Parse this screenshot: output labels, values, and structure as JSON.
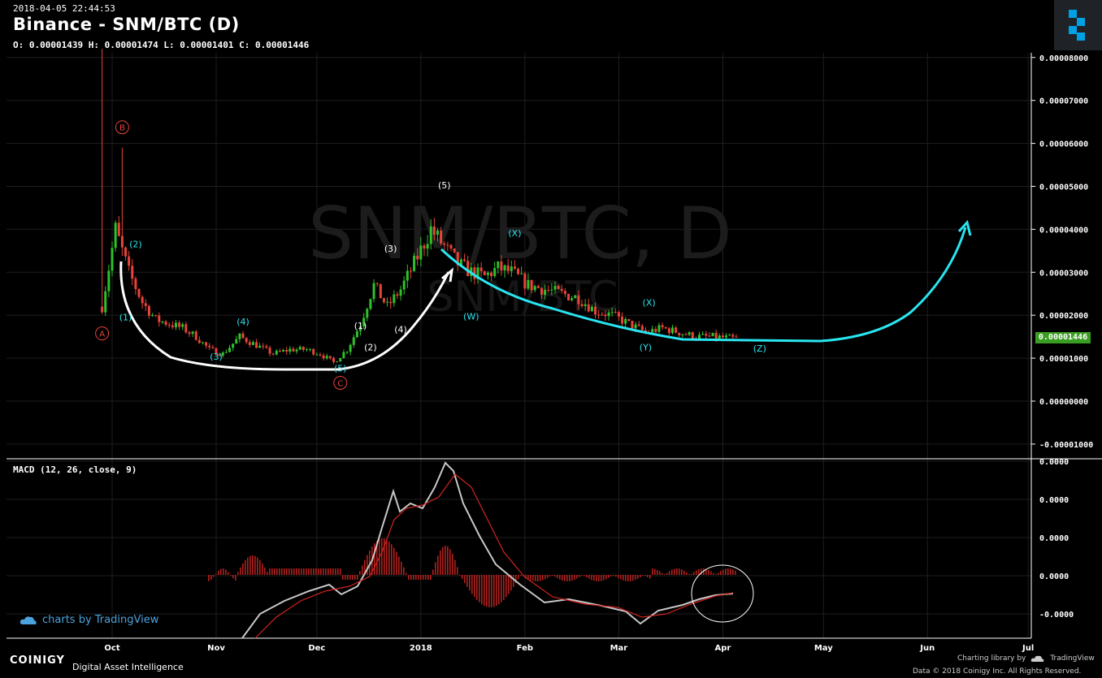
{
  "header": {
    "datetime": "2018-04-05 22:44:53",
    "title": "Binance - SNM/BTC (D)",
    "ohlc": "O: 0.00001439 H: 0.00001474 L: 0.00001401 C: 0.00001446"
  },
  "watermark": {
    "line1": "SNM/BTC, D",
    "line2": "SNM/BTC"
  },
  "last_price": "0.00001446",
  "macd_label": "MACD (12, 26, close, 9)",
  "tradingview_badge": "charts by TradingView",
  "footer": {
    "brand": "COINIGY",
    "tagline": "Digital Asset Intelligence",
    "charting": "Charting library by",
    "charting_brand": "TradingView",
    "rights": "Data © 2018  Coinigy Inc. All Rights Reserved."
  },
  "colors": {
    "up": "#2ec12a",
    "down": "#e8433a",
    "cyan": "#29e5f0",
    "white": "#ffffff",
    "grid": "#1e1e1e",
    "macd_signal": "#d0241f",
    "macd_line": "#c8c8c8",
    "price_tag": "#3a9d23"
  },
  "chart_data": {
    "type": "candlestick",
    "price_axis": {
      "min": -1e-05,
      "max": 8e-05,
      "ticks": [
        "0.00008000",
        "0.00007000",
        "0.00006000",
        "0.00005000",
        "0.00004000",
        "0.00003000",
        "0.00002000",
        "0.00001000",
        "0.00000000",
        "-0.00001000"
      ]
    },
    "time_axis": [
      "Oct",
      "Nov",
      "Dec",
      "2018",
      "Feb",
      "Mar",
      "Apr",
      "May",
      "Jun",
      "Jul"
    ],
    "close_series": [
      [
        "2017-09-28",
        2.2e-05
      ],
      [
        "2017-10-02",
        4e-05
      ],
      [
        "2017-10-06",
        3e-05
      ],
      [
        "2017-10-10",
        2.3e-05
      ],
      [
        "2017-10-14",
        1.9e-05
      ],
      [
        "2017-10-18",
        1.8e-05
      ],
      [
        "2017-10-22",
        1.7e-05
      ],
      [
        "2017-10-26",
        1.5e-05
      ],
      [
        "2017-10-30",
        1.2e-05
      ],
      [
        "2017-11-03",
        1.1e-05
      ],
      [
        "2017-11-08",
        1.5e-05
      ],
      [
        "2017-11-13",
        1.3e-05
      ],
      [
        "2017-11-18",
        1.1e-05
      ],
      [
        "2017-11-23",
        1.2e-05
      ],
      [
        "2017-11-28",
        1.2e-05
      ],
      [
        "2017-12-02",
        1.1e-05
      ],
      [
        "2017-12-06",
        9e-06
      ],
      [
        "2017-12-10",
        1.2e-05
      ],
      [
        "2017-12-14",
        1.8e-05
      ],
      [
        "2017-12-18",
        2.7e-05
      ],
      [
        "2017-12-22",
        2.2e-05
      ],
      [
        "2017-12-26",
        2.6e-05
      ],
      [
        "2017-12-30",
        3.2e-05
      ],
      [
        "2018-01-04",
        4e-05
      ],
      [
        "2018-01-08",
        3.6e-05
      ],
      [
        "2018-01-12",
        3.2e-05
      ],
      [
        "2018-01-16",
        3e-05
      ],
      [
        "2018-01-20",
        2.9e-05
      ],
      [
        "2018-01-24",
        3.1e-05
      ],
      [
        "2018-01-28",
        3e-05
      ],
      [
        "2018-02-02",
        2.7e-05
      ],
      [
        "2018-02-07",
        2.6e-05
      ],
      [
        "2018-02-12",
        2.5e-05
      ],
      [
        "2018-02-17",
        2.4e-05
      ],
      [
        "2018-02-22",
        2.1e-05
      ],
      [
        "2018-02-27",
        2e-05
      ],
      [
        "2018-03-04",
        1.8e-05
      ],
      [
        "2018-03-09",
        1.6e-05
      ],
      [
        "2018-03-14",
        1.7e-05
      ],
      [
        "2018-03-19",
        1.6e-05
      ],
      [
        "2018-03-24",
        1.5e-05
      ],
      [
        "2018-03-29",
        1.5e-05
      ],
      [
        "2018-04-05",
        1.45e-05
      ]
    ],
    "macd_axis": {
      "ticks": [
        "0.0000",
        "0.0000",
        "0.0000",
        "0.0000",
        "-0.0000"
      ]
    },
    "annotations": [
      {
        "text": "A",
        "date": "2017-09-28",
        "price": 1.5e-05,
        "color": "red",
        "circled": true
      },
      {
        "text": "B",
        "date": "2017-10-04",
        "price": 6.3e-05,
        "color": "red",
        "circled": true
      },
      {
        "text": "C",
        "date": "2017-12-08",
        "price": 3.5e-06,
        "color": "red",
        "circled": true
      },
      {
        "text": "(1)",
        "date": "2017-10-05",
        "price": 1.88e-05,
        "color": "cyan"
      },
      {
        "text": "(2)",
        "date": "2017-10-08",
        "price": 3.58e-05,
        "color": "cyan"
      },
      {
        "text": "(3)",
        "date": "2017-11-01",
        "price": 9.6e-06,
        "color": "cyan"
      },
      {
        "text": "(4)",
        "date": "2017-11-09",
        "price": 1.78e-05,
        "color": "cyan"
      },
      {
        "text": "(5)",
        "date": "2017-12-08",
        "price": 6.9e-06,
        "color": "cyan"
      },
      {
        "text": "(1)",
        "date": "2017-12-14",
        "price": 1.68e-05,
        "color": "white"
      },
      {
        "text": "(2)",
        "date": "2017-12-17",
        "price": 1.18e-05,
        "color": "white"
      },
      {
        "text": "(3)",
        "date": "2017-12-23",
        "price": 3.48e-05,
        "color": "white"
      },
      {
        "text": "(4)",
        "date": "2017-12-26",
        "price": 1.6e-05,
        "color": "white"
      },
      {
        "text": "(5)",
        "date": "2018-01-08",
        "price": 4.95e-05,
        "color": "white"
      },
      {
        "text": "(W)",
        "date": "2018-01-16",
        "price": 1.9e-05,
        "color": "cyan"
      },
      {
        "text": "(X)",
        "date": "2018-01-29",
        "price": 3.84e-05,
        "color": "cyan"
      },
      {
        "text": "(X)",
        "date": "2018-03-10",
        "price": 2.22e-05,
        "color": "cyan"
      },
      {
        "text": "(Y)",
        "date": "2018-03-09",
        "price": 1.18e-05,
        "color": "cyan"
      },
      {
        "text": "(Z)",
        "date": "2018-04-12",
        "price": 1.15e-05,
        "color": "cyan"
      }
    ]
  }
}
